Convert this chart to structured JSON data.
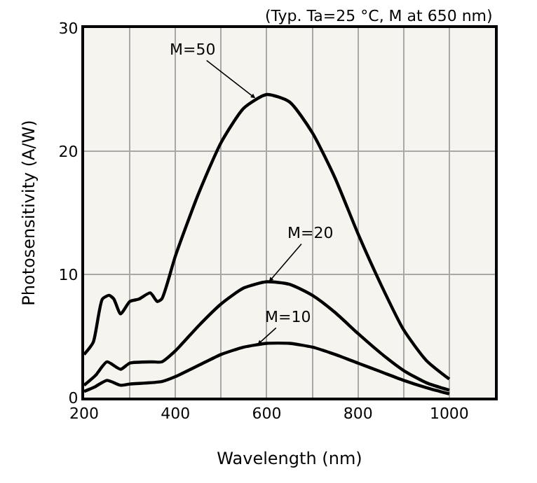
{
  "chart_data": {
    "type": "line",
    "subtitle": "(Typ. Ta=25 °C, M at 650 nm)",
    "xlabel": "Wavelength (nm)",
    "ylabel": "Photosensitivity (A/W)",
    "xlim": [
      200,
      1100
    ],
    "xticks": [
      200,
      400,
      600,
      800,
      1000
    ],
    "ylim": [
      0,
      30
    ],
    "yticks": [
      0,
      10,
      20,
      30
    ],
    "grid": true,
    "marker": "none",
    "line_style": "solid",
    "series": [
      {
        "color": "#000000",
        "x": [
          200,
          220,
          240,
          255,
          265,
          280,
          300,
          320,
          345,
          360,
          370,
          400,
          450,
          500,
          550,
          600,
          650,
          700,
          750,
          800,
          850,
          900,
          950,
          1000
        ],
        "values": [
          3.5,
          4.5,
          8,
          8.3,
          8,
          6.8,
          7.8,
          8.0,
          8.5,
          7.8,
          8.0,
          11.5,
          16.5,
          20.7,
          23.5,
          24.6,
          24,
          21.5,
          17.8,
          13.3,
          9.2,
          5.5,
          3.0,
          1.5
        ]
      },
      {
        "color": "#000000",
        "x": [
          200,
          225,
          250,
          280,
          300,
          350,
          370,
          400,
          450,
          500,
          550,
          600,
          650,
          700,
          750,
          800,
          850,
          900,
          950,
          1000
        ],
        "values": [
          1.0,
          1.8,
          2.9,
          2.3,
          2.8,
          2.9,
          2.9,
          3.8,
          5.8,
          7.6,
          8.9,
          9.4,
          9.2,
          8.3,
          6.9,
          5.2,
          3.6,
          2.2,
          1.2,
          0.6
        ]
      },
      {
        "color": "#000000",
        "x": [
          200,
          225,
          250,
          280,
          300,
          370,
          400,
          450,
          500,
          550,
          600,
          650,
          700,
          750,
          800,
          850,
          900,
          950,
          1000
        ],
        "values": [
          0.5,
          0.9,
          1.4,
          1.0,
          1.1,
          1.3,
          1.7,
          2.6,
          3.5,
          4.1,
          4.4,
          4.4,
          4.1,
          3.5,
          2.8,
          2.1,
          1.4,
          0.8,
          0.3
        ]
      }
    ],
    "annotations": [
      {
        "text": "M=50",
        "x": 575,
        "y": 24.3
      },
      {
        "text": "M=20",
        "x": 605,
        "y": 9.4
      },
      {
        "text": "M=10",
        "x": 580,
        "y": 4.3
      }
    ]
  }
}
